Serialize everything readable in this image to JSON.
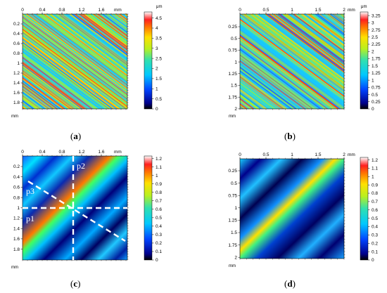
{
  "panels": [
    {
      "id": "a",
      "caption_letter": "a",
      "x_ticks": [
        "0",
        "0.4",
        "0.8",
        "1.2",
        "1.6"
      ],
      "x_unit": "mm",
      "y_ticks": [
        "0.2",
        "0.4",
        "0.6",
        "0.8",
        "1",
        "1.2",
        "1.4",
        "1.6",
        "1.8"
      ],
      "y_unit": "mm",
      "colorbar_unit": "μm",
      "colorbar_ticks": [
        "4.5",
        "4",
        "3.5",
        "3",
        "2.5",
        "2",
        "1.5",
        "1",
        "0.5",
        "0"
      ]
    },
    {
      "id": "b",
      "caption_letter": "b",
      "x_ticks": [
        "0",
        "0.5",
        "1",
        "1.5",
        "2"
      ],
      "x_unit": "mm",
      "y_ticks": [
        "0.25",
        "0.5",
        "0.75",
        "1",
        "1.25",
        "1.5",
        "1.75",
        "2"
      ],
      "y_unit": "mm",
      "colorbar_unit": "μm",
      "colorbar_ticks": [
        "3.25",
        "3",
        "2.75",
        "2.5",
        "2.25",
        "2",
        "1.75",
        "1.5",
        "1.25",
        "1",
        "0.75",
        "0.5",
        "0.25",
        "0"
      ]
    },
    {
      "id": "c",
      "caption_letter": "c",
      "x_ticks": [
        "0",
        "0.4",
        "0.8",
        "1.2",
        "1.6"
      ],
      "x_unit": "mm",
      "y_ticks": [
        "0.2",
        "0.4",
        "0.6",
        "0.8",
        "1",
        "1.2",
        "1.4",
        "1.6",
        "1.8"
      ],
      "y_unit": "mm",
      "colorbar_ticks": [
        "1.2",
        "1.1",
        "1",
        "0.9",
        "0.8",
        "0.7",
        "0.6",
        "0.5",
        "0.4",
        "0.3",
        "0.2",
        "0.1",
        "0"
      ],
      "profile_labels": [
        "p1",
        "p2",
        "p3"
      ]
    },
    {
      "id": "d",
      "caption_letter": "d",
      "x_ticks": [
        "0",
        "0.5",
        "1",
        "1.5",
        "2"
      ],
      "x_unit": "mm",
      "y_ticks": [
        "0.25",
        "0.5",
        "0.75",
        "1",
        "1.25",
        "1.5",
        "1.75",
        "2"
      ],
      "y_unit": "mm",
      "colorbar_ticks": [
        "1.2",
        "1.1",
        "1",
        "0.9",
        "0.8",
        "0.7",
        "0.6",
        "0.5",
        "0.4",
        "0.3",
        "0.2",
        "0.1",
        "0"
      ]
    }
  ],
  "colors": {
    "map_low": "#00008b",
    "map_mid": "#1fd0e0",
    "map_high": "#ff2a1a"
  }
}
